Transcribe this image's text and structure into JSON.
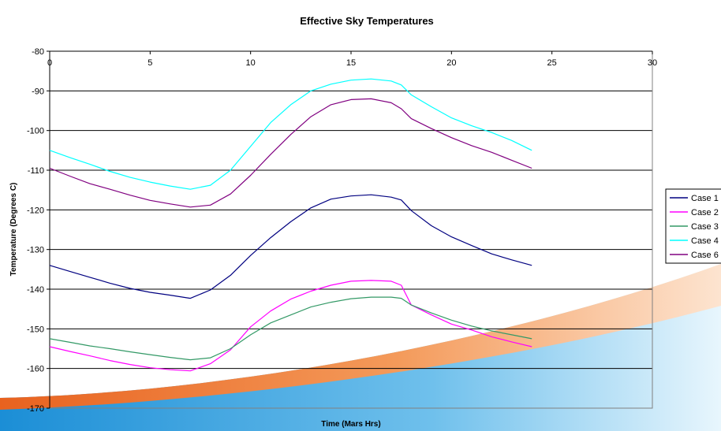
{
  "chart_data": {
    "type": "line",
    "title": "Effective Sky Temperatures",
    "xlabel": "Time (Mars Hrs)",
    "ylabel": "Temperature (Degrees C)",
    "xlim": [
      0,
      30
    ],
    "ylim": [
      -170,
      -80
    ],
    "x_ticks": [
      0,
      5,
      10,
      15,
      20,
      25,
      30
    ],
    "y_ticks": [
      -80,
      -90,
      -100,
      -110,
      -120,
      -130,
      -140,
      -150,
      -160,
      -170
    ],
    "x_axis_position": "top",
    "grid": "horizontal",
    "legend_position": "right",
    "series": [
      {
        "name": "Case 1",
        "color": "#000080",
        "x": [
          0,
          1,
          2,
          3,
          4,
          5,
          6,
          7,
          8,
          9,
          10,
          11,
          12,
          13,
          14,
          15,
          16,
          17,
          17.5,
          18,
          19,
          20,
          21,
          22,
          23,
          24
        ],
        "y": [
          -134,
          -135.5,
          -137,
          -138.5,
          -139.8,
          -140.8,
          -141.5,
          -142.3,
          -140.2,
          -136.5,
          -131.5,
          -127,
          -123,
          -119.5,
          -117.3,
          -116.5,
          -116.2,
          -116.8,
          -117.5,
          -120.2,
          -124,
          -126.8,
          -129,
          -131.1,
          -132.6,
          -134
        ]
      },
      {
        "name": "Case 2",
        "color": "#ff00ff",
        "x": [
          0,
          1,
          2,
          3,
          4,
          5,
          6,
          7,
          8,
          9,
          10,
          11,
          12,
          13,
          14,
          15,
          16,
          17,
          17.5,
          18,
          19,
          20,
          21,
          22,
          23,
          24
        ],
        "y": [
          -154.5,
          -155.7,
          -156.8,
          -158,
          -159,
          -159.8,
          -160.3,
          -160.6,
          -158.8,
          -155.3,
          -149.5,
          -145.5,
          -142.5,
          -140.5,
          -139,
          -138,
          -137.8,
          -138,
          -139,
          -144,
          -146.5,
          -148.8,
          -150.3,
          -152,
          -153.3,
          -154.5
        ]
      },
      {
        "name": "Case 3",
        "color": "#339966",
        "x": [
          0,
          1,
          2,
          3,
          4,
          5,
          6,
          7,
          8,
          9,
          10,
          11,
          12,
          13,
          14,
          15,
          16,
          17,
          17.5,
          18,
          19,
          20,
          21,
          22,
          23,
          24
        ],
        "y": [
          -152.5,
          -153.4,
          -154.3,
          -155,
          -155.8,
          -156.5,
          -157.2,
          -157.8,
          -157.3,
          -155,
          -151.5,
          -148.5,
          -146.5,
          -144.5,
          -143.3,
          -142.4,
          -142,
          -142,
          -142.3,
          -144,
          -146,
          -147.8,
          -149.3,
          -150.5,
          -151.5,
          -152.5
        ]
      },
      {
        "name": "Case 4",
        "color": "#00ffff",
        "x": [
          0,
          1,
          2,
          3,
          4,
          5,
          6,
          7,
          8,
          9,
          10,
          11,
          12,
          13,
          14,
          15,
          16,
          17,
          17.5,
          18,
          19,
          20,
          21,
          22,
          23,
          24
        ],
        "y": [
          -105,
          -106.8,
          -108.5,
          -110.3,
          -111.8,
          -113,
          -114,
          -114.8,
          -113.8,
          -110,
          -104,
          -98,
          -93.5,
          -90,
          -88.3,
          -87.3,
          -87,
          -87.5,
          -88.5,
          -91,
          -94,
          -96.8,
          -98.8,
          -100.5,
          -102.5,
          -105
        ]
      },
      {
        "name": "Case 6",
        "color": "#800080",
        "x": [
          0,
          1,
          2,
          3,
          4,
          5,
          6,
          7,
          8,
          9,
          10,
          11,
          12,
          13,
          14,
          15,
          16,
          17,
          17.5,
          18,
          19,
          20,
          21,
          22,
          23,
          24
        ],
        "y": [
          -109.5,
          -111.5,
          -113.4,
          -114.8,
          -116.3,
          -117.6,
          -118.5,
          -119.3,
          -118.8,
          -116,
          -111.3,
          -106,
          -101,
          -96.5,
          -93.5,
          -92.2,
          -92,
          -93,
          -94.5,
          -97,
          -99.5,
          -101.8,
          -103.8,
          -105.5,
          -107.5,
          -109.5
        ]
      }
    ]
  }
}
